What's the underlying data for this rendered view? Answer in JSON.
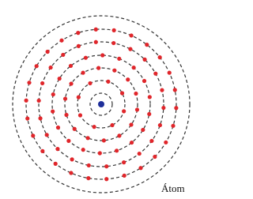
{
  "label": "Átom"
}
